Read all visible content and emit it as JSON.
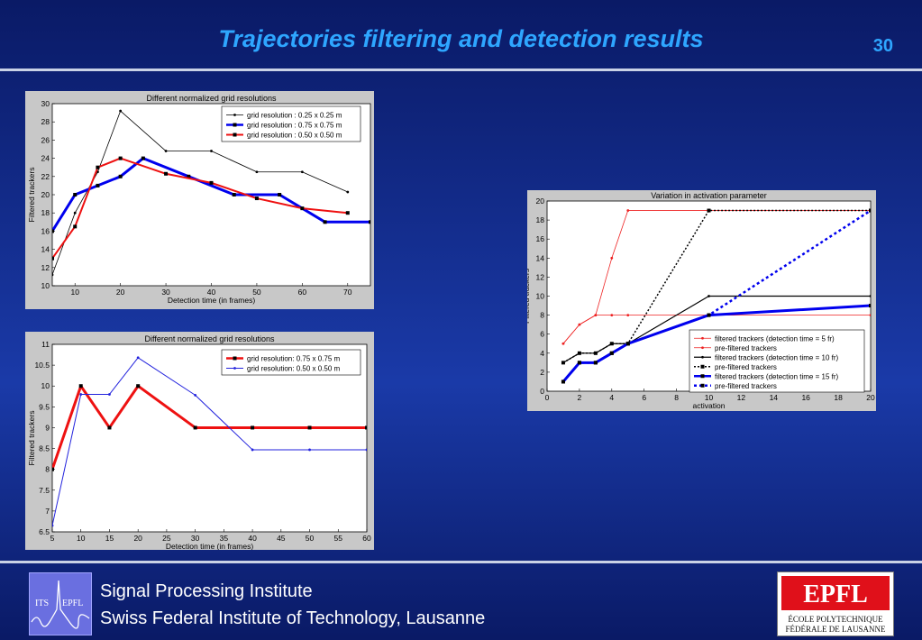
{
  "header": {
    "title": "Trajectories filtering and detection results",
    "slide_number": "30"
  },
  "footer": {
    "line1": "Signal Processing Institute",
    "line2": "Swiss Federal Institute of Technology, Lausanne",
    "its_logo": {
      "left": "ITS",
      "right": "EPFL"
    },
    "epfl_logo": {
      "mark": "EPFL",
      "line1": "ÉCOLE POLYTECHNIQUE",
      "line2": "FÉDÉRALE DE LAUSANNE"
    }
  },
  "colors": {
    "title": "#2ea6ff",
    "background": "#1a3aa8",
    "brand_red": "#e0101a"
  },
  "chart_data": [
    {
      "type": "line",
      "title": "Different normalized grid resolutions",
      "xlabel": "Detection time  (in frames)",
      "ylabel": "Filtered trackers",
      "xlim": [
        5,
        75
      ],
      "ylim": [
        10,
        30
      ],
      "xticks": [
        10,
        20,
        30,
        40,
        50,
        60,
        70
      ],
      "yticks": [
        10,
        12,
        14,
        16,
        18,
        20,
        22,
        24,
        26,
        28,
        30
      ],
      "legend": "top-right",
      "series": [
        {
          "name": "grid resolution : 0.25 x 0.25 m",
          "color": "#000000",
          "width": 0.8,
          "marker": "dot",
          "points": [
            [
              5,
              11.2
            ],
            [
              10,
              18
            ],
            [
              15,
              22.5
            ],
            [
              20,
              29.2
            ],
            [
              30,
              24.8
            ],
            [
              40,
              24.8
            ],
            [
              50,
              22.5
            ],
            [
              60,
              22.5
            ],
            [
              70,
              20.3
            ]
          ]
        },
        {
          "name": "grid resolution : 0.75 x 0.75 m",
          "color": "#0000ee",
          "width": 3,
          "marker": "square",
          "points": [
            [
              5,
              16
            ],
            [
              10,
              20
            ],
            [
              15,
              21
            ],
            [
              20,
              22
            ],
            [
              25,
              24
            ],
            [
              35,
              22
            ],
            [
              45,
              20
            ],
            [
              55,
              20
            ],
            [
              65,
              17
            ],
            [
              75,
              17
            ]
          ]
        },
        {
          "name": "grid resolution : 0.50 x 0.50 m",
          "color": "#ee1111",
          "width": 2,
          "marker": "square",
          "points": [
            [
              5,
              13
            ],
            [
              10,
              16.5
            ],
            [
              15,
              23
            ],
            [
              20,
              24
            ],
            [
              30,
              22.3
            ],
            [
              40,
              21.3
            ],
            [
              50,
              19.6
            ],
            [
              60,
              18.5
            ],
            [
              70,
              18
            ]
          ]
        }
      ]
    },
    {
      "type": "line",
      "title": "Different normalized grid resolutions",
      "xlabel": "Detection time (in frames)",
      "ylabel": "Filtered trackers",
      "xlim": [
        5,
        60
      ],
      "ylim": [
        6.5,
        11
      ],
      "xticks": [
        5,
        10,
        15,
        20,
        25,
        30,
        35,
        40,
        45,
        50,
        55,
        60
      ],
      "yticks": [
        6.5,
        7,
        7.5,
        8,
        8.5,
        9,
        9.5,
        10,
        10.5,
        11
      ],
      "legend": "top-right",
      "series": [
        {
          "name": "grid resolution: 0.75 x 0.75 m",
          "color": "#ee1111",
          "width": 3,
          "marker": "square",
          "points": [
            [
              5,
              8
            ],
            [
              10,
              10
            ],
            [
              15,
              9
            ],
            [
              20,
              10
            ],
            [
              30,
              9
            ],
            [
              40,
              9
            ],
            [
              50,
              9
            ],
            [
              60,
              9
            ]
          ]
        },
        {
          "name": "grid resolution: 0.50 x 0.50 m",
          "color": "#2222dd",
          "width": 1,
          "marker": "dot",
          "points": [
            [
              5,
              6.65
            ],
            [
              10,
              9.8
            ],
            [
              15,
              9.8
            ],
            [
              20,
              10.68
            ],
            [
              30,
              9.78
            ],
            [
              40,
              8.47
            ],
            [
              50,
              8.47
            ],
            [
              60,
              8.47
            ]
          ]
        }
      ]
    },
    {
      "type": "line",
      "title": "Variation in activation parameter",
      "xlabel": "activation",
      "ylabel": "Filtered trackers",
      "xlim": [
        0,
        20
      ],
      "ylim": [
        0,
        20
      ],
      "xticks": [
        0,
        2,
        4,
        6,
        8,
        10,
        12,
        14,
        16,
        18,
        20
      ],
      "yticks": [
        0,
        2,
        4,
        6,
        8,
        10,
        12,
        14,
        16,
        18,
        20
      ],
      "legend": "bottom-right",
      "series": [
        {
          "name": "filtered trackers (detection time = 5 fr)",
          "color": "#ee2222",
          "width": 0.8,
          "marker": "dot",
          "points": [
            [
              1,
              5
            ],
            [
              2,
              7
            ],
            [
              3,
              8
            ],
            [
              4,
              8
            ],
            [
              5,
              8
            ],
            [
              10,
              8
            ],
            [
              20,
              8
            ]
          ]
        },
        {
          "name": "pre-filtered trackers",
          "color": "#ee2222",
          "width": 0.8,
          "marker": "dot",
          "points": [
            [
              1,
              5
            ],
            [
              2,
              7
            ],
            [
              3,
              8
            ],
            [
              4,
              14
            ],
            [
              5,
              19
            ],
            [
              10,
              19
            ],
            [
              20,
              19
            ]
          ]
        },
        {
          "name": "filtered trackers (detection time = 10 fr)",
          "color": "#000000",
          "width": 1.2,
          "marker": "dot",
          "points": [
            [
              1,
              3
            ],
            [
              2,
              4
            ],
            [
              3,
              4
            ],
            [
              4,
              5
            ],
            [
              5,
              5
            ],
            [
              10,
              10
            ],
            [
              20,
              10
            ]
          ]
        },
        {
          "name": "pre-filtered trackers",
          "color": "#000000",
          "width": 1.5,
          "marker": "square",
          "dash": "2,2",
          "points": [
            [
              1,
              3
            ],
            [
              2,
              4
            ],
            [
              3,
              4
            ],
            [
              4,
              5
            ],
            [
              5,
              5
            ],
            [
              10,
              19
            ],
            [
              20,
              19
            ]
          ]
        },
        {
          "name": "filtered trackers (detection time = 15 fr)",
          "color": "#0000ee",
          "width": 3,
          "marker": "square",
          "points": [
            [
              1,
              1
            ],
            [
              2,
              3
            ],
            [
              3,
              3
            ],
            [
              4,
              4
            ],
            [
              5,
              5
            ],
            [
              10,
              8
            ],
            [
              20,
              9
            ]
          ]
        },
        {
          "name": "pre-filtered trackers",
          "color": "#0000ee",
          "width": 2.5,
          "marker": "square",
          "dash": "3,3",
          "points": [
            [
              1,
              1
            ],
            [
              2,
              3
            ],
            [
              3,
              3
            ],
            [
              4,
              4
            ],
            [
              5,
              5
            ],
            [
              10,
              8
            ],
            [
              20,
              19
            ]
          ]
        }
      ]
    }
  ]
}
